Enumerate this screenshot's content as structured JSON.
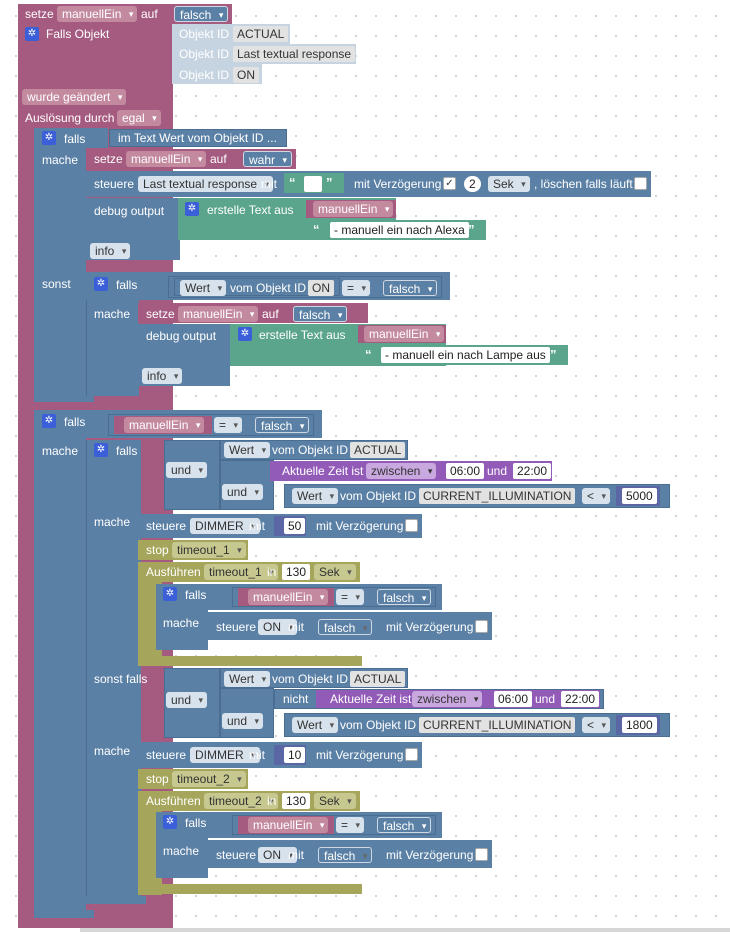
{
  "trigger": {
    "set_kw": "setze",
    "var": "manuellEin",
    "to_kw": "auf",
    "val": "falsch",
    "if_object": "Falls Objekt",
    "oid_label": "Objekt ID",
    "oids": [
      "ACTUAL",
      "Last textual response",
      "ON"
    ],
    "changed": "wurde geändert",
    "trigger_by": "Auslösung durch",
    "trigger_val": "egal"
  },
  "if1": {
    "falls": "falls",
    "cond": "im Text Wert vom Objekt ID ...",
    "mache": "mache",
    "set_kw": "setze",
    "var": "manuellEin",
    "to_kw": "auf",
    "val": "wahr",
    "steuere": "steuere",
    "steuere_target": "Last textual response",
    "mit": "mit",
    "mit_verz": "mit Verzögerung",
    "check": "✓",
    "delay": "2",
    "unit": "Sek",
    "clear": ", löschen falls läuft",
    "debug": "debug output",
    "create_text": "erstelle Text aus",
    "text_var": "manuellEin",
    "text_str": "- manuell ein nach Alexa",
    "info": "info",
    "sonst": "sonst",
    "inner_falls": "falls",
    "wert": "Wert",
    "vom_oid": "vom Objekt ID",
    "oid": "ON",
    "eq": "=",
    "cmp": "falsch",
    "inner_mache": "mache",
    "inner_set_kw": "setze",
    "inner_var": "manuellEin",
    "inner_to": "auf",
    "inner_val": "falsch",
    "inner_debug": "debug output",
    "inner_create": "erstelle Text aus",
    "inner_text_var": "manuellEin",
    "inner_text_str": "- manuell ein nach Lampe aus",
    "inner_info": "info"
  },
  "if2": {
    "falls": "falls",
    "var": "manuellEin",
    "eq": "=",
    "cmp": "falsch",
    "mache": "mache",
    "a_falls": "falls",
    "a_wert": "Wert",
    "a_vom_oid": "vom Objekt ID",
    "a_oid": "ACTUAL",
    "a_und1": "und",
    "a_und2": "und",
    "a_time": "Aktuelle Zeit ist",
    "a_between": "zwischen",
    "a_t1": "06:00",
    "a_und_t": "und",
    "a_t2": "22:00",
    "a_wert2": "Wert",
    "a_vom_oid2": "vom Objekt ID",
    "a_oid2": "CURRENT_ILLUMINATION",
    "a_lt": "<",
    "a_num": "5000",
    "a_mache": "mache",
    "a_steuere": "steuere",
    "a_target": "DIMMER",
    "a_mit": "mit",
    "a_value": "50",
    "a_mit_verz": "mit Verzögerung",
    "a_stop": "stop",
    "a_timeout": "timeout_1",
    "a_exec": "Ausführen",
    "a_exec_timeout": "timeout_1",
    "a_in": "in",
    "a_in_val": "130",
    "a_unit": "Sek",
    "a_if_falls": "falls",
    "a_if_var": "manuellEin",
    "a_if_eq": "=",
    "a_if_cmp": "falsch",
    "a_if_mache": "mache",
    "a_if_steuere": "steuere",
    "a_if_target": "ON",
    "a_if_mit": "mit",
    "a_if_val": "falsch",
    "a_if_mit_verz": "mit Verzögerung",
    "b_sonst_falls": "sonst falls",
    "b_wert": "Wert",
    "b_vom_oid": "vom Objekt ID",
    "b_oid": "ACTUAL",
    "b_und1": "und",
    "b_und2": "und",
    "b_nicht": "nicht",
    "b_time": "Aktuelle Zeit ist",
    "b_between": "zwischen",
    "b_t1": "06:00",
    "b_und_t": "und",
    "b_t2": "22:00",
    "b_wert2": "Wert",
    "b_vom_oid2": "vom Objekt ID",
    "b_oid2": "CURRENT_ILLUMINATION",
    "b_lt": "<",
    "b_num": "1800",
    "b_mache": "mache",
    "b_steuere": "steuere",
    "b_target": "DIMMER",
    "b_mit": "mit",
    "b_value": "10",
    "b_mit_verz": "mit Verzögerung",
    "b_stop": "stop",
    "b_timeout": "timeout_2",
    "b_exec": "Ausführen",
    "b_exec_timeout": "timeout_2",
    "b_in": "in",
    "b_in_val": "130",
    "b_unit": "Sek",
    "b_if_falls": "falls",
    "b_if_var": "manuellEin",
    "b_if_eq": "=",
    "b_if_cmp": "falsch",
    "b_if_mache": "mache",
    "b_if_steuere": "steuere",
    "b_if_target": "ON",
    "b_if_mit": "mit",
    "b_if_val": "falsch",
    "b_if_mit_verz": "mit Verzögerung"
  },
  "icons": {
    "gear": "gear-icon",
    "quote": "quote-icon",
    "dropdown": "chevron-down-icon"
  },
  "colors": {
    "variables": "#a55b80",
    "logic": "#5b80a5",
    "text": "#5ba58c",
    "time": "#925bb8",
    "timeouts": "#a5a55b"
  }
}
